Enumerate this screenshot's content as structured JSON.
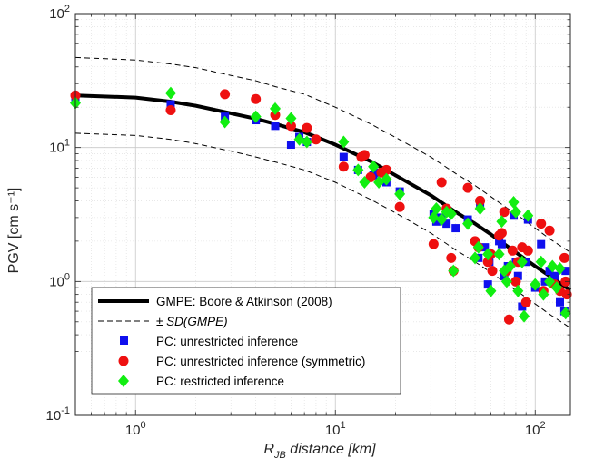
{
  "chart_data": {
    "type": "scatter",
    "xscale": "log",
    "yscale": "log",
    "xlim": [
      0.5,
      150
    ],
    "ylim": [
      0.1,
      100
    ],
    "grid": true,
    "legend_position": "bottom-left",
    "xlabel": {
      "main": "R",
      "sub": "JB",
      "rest": " distance [km]"
    },
    "ylabel": "PGV [cm s⁻¹]",
    "x_ticks": [
      {
        "value": 1,
        "base": "10",
        "exp": "0"
      },
      {
        "value": 10,
        "base": "10",
        "exp": "1"
      },
      {
        "value": 100,
        "base": "10",
        "exp": "2"
      }
    ],
    "y_ticks": [
      {
        "value": 0.1,
        "base": "10",
        "exp": "-1"
      },
      {
        "value": 1,
        "base": "10",
        "exp": "0"
      },
      {
        "value": 10,
        "base": "10",
        "exp": "1"
      },
      {
        "value": 100,
        "base": "10",
        "exp": "2"
      }
    ],
    "series": [
      {
        "name": "GMPE: Boore & Atkinson (2008)",
        "kind": "line",
        "style": "solid",
        "color": "#000000",
        "points": [
          [
            0.5,
            24.5
          ],
          [
            1,
            23.6
          ],
          [
            1.5,
            22.0
          ],
          [
            2,
            20.5
          ],
          [
            3,
            18.0
          ],
          [
            4,
            16.4
          ],
          [
            5,
            15.0
          ],
          [
            7,
            13.0
          ],
          [
            10,
            10.5
          ],
          [
            15,
            7.9
          ],
          [
            20,
            6.2
          ],
          [
            30,
            4.4
          ],
          [
            40,
            3.3
          ],
          [
            50,
            2.7
          ],
          [
            60,
            2.25
          ],
          [
            70,
            1.9
          ],
          [
            80,
            1.65
          ],
          [
            100,
            1.3
          ],
          [
            120,
            1.08
          ],
          [
            150,
            0.86
          ]
        ]
      },
      {
        "name": "± SD(GMPE)",
        "kind": "line",
        "style": "dashed",
        "color": "#000000",
        "upper": [
          [
            0.5,
            47
          ],
          [
            1,
            45
          ],
          [
            1.5,
            42
          ],
          [
            2,
            39.5
          ],
          [
            3,
            34.5
          ],
          [
            4,
            31.5
          ],
          [
            5,
            28.5
          ],
          [
            7,
            25
          ],
          [
            10,
            20
          ],
          [
            15,
            15
          ],
          [
            20,
            11.9
          ],
          [
            30,
            8.5
          ],
          [
            40,
            6.4
          ],
          [
            50,
            5.2
          ],
          [
            60,
            4.3
          ],
          [
            70,
            3.65
          ],
          [
            80,
            3.2
          ],
          [
            100,
            2.5
          ],
          [
            120,
            2.05
          ],
          [
            150,
            1.65
          ]
        ],
        "lower": [
          [
            0.5,
            12.8
          ],
          [
            1,
            12.3
          ],
          [
            1.5,
            11.5
          ],
          [
            2,
            10.7
          ],
          [
            3,
            9.4
          ],
          [
            4,
            8.5
          ],
          [
            5,
            7.8
          ],
          [
            7,
            6.8
          ],
          [
            10,
            5.5
          ],
          [
            15,
            4.1
          ],
          [
            20,
            3.25
          ],
          [
            30,
            2.3
          ],
          [
            40,
            1.72
          ],
          [
            50,
            1.4
          ],
          [
            60,
            1.17
          ],
          [
            70,
            0.99
          ],
          [
            80,
            0.86
          ],
          [
            100,
            0.68
          ],
          [
            120,
            0.56
          ],
          [
            150,
            0.45
          ]
        ]
      },
      {
        "name": "PC: unrestricted inference",
        "kind": "marker",
        "marker": "square",
        "color": "#1010ee",
        "points": [
          [
            0.5,
            22.5
          ],
          [
            1.5,
            21.0
          ],
          [
            2.8,
            17.0
          ],
          [
            4,
            16.0
          ],
          [
            5,
            14.5
          ],
          [
            6,
            10.5
          ],
          [
            6.6,
            12.0
          ],
          [
            7.2,
            11.0
          ],
          [
            11,
            8.5
          ],
          [
            13,
            6.8
          ],
          [
            15.5,
            6.2
          ],
          [
            16.5,
            6.5
          ],
          [
            18,
            5.5
          ],
          [
            21,
            4.7
          ],
          [
            31,
            3.2
          ],
          [
            32,
            2.8
          ],
          [
            34,
            3.0
          ],
          [
            36,
            2.7
          ],
          [
            40,
            2.5
          ],
          [
            46,
            2.9
          ],
          [
            52,
            1.5
          ],
          [
            53,
            3.8
          ],
          [
            56,
            1.8
          ],
          [
            58,
            0.95
          ],
          [
            59,
            1.4
          ],
          [
            66,
            2.0
          ],
          [
            68,
            1.9
          ],
          [
            70,
            1.1
          ],
          [
            73,
            1.3
          ],
          [
            78,
            3.1
          ],
          [
            80,
            1.4
          ],
          [
            82,
            1.1
          ],
          [
            86,
            0.65
          ],
          [
            90,
            1.4
          ],
          [
            92,
            2.9
          ],
          [
            100,
            0.9
          ],
          [
            107,
            1.9
          ],
          [
            112,
            1.0
          ],
          [
            118,
            1.2
          ],
          [
            125,
            1.1
          ],
          [
            133,
            0.7
          ],
          [
            140,
            0.6
          ],
          [
            142,
            1.2
          ]
        ]
      },
      {
        "name": "PC: unrestricted inference (symmetric)",
        "kind": "marker",
        "marker": "circle",
        "color": "#ee1010",
        "points": [
          [
            0.5,
            24.5
          ],
          [
            1.5,
            19.0
          ],
          [
            2.8,
            25.0
          ],
          [
            4,
            23.0
          ],
          [
            5,
            17.5
          ],
          [
            6,
            14.5
          ],
          [
            7.2,
            14.0
          ],
          [
            8,
            11.5
          ],
          [
            11,
            7.2
          ],
          [
            13.5,
            8.5
          ],
          [
            14,
            8.8
          ],
          [
            15,
            6.0
          ],
          [
            17,
            6.5
          ],
          [
            18,
            6.8
          ],
          [
            21,
            3.6
          ],
          [
            31,
            1.9
          ],
          [
            34,
            5.5
          ],
          [
            36,
            3.5
          ],
          [
            38,
            1.5
          ],
          [
            39,
            1.2
          ],
          [
            46,
            5.0
          ],
          [
            50,
            2.0
          ],
          [
            52,
            1.8
          ],
          [
            53,
            4.0
          ],
          [
            58,
            1.4
          ],
          [
            60,
            1.6
          ],
          [
            61,
            1.2
          ],
          [
            66,
            2.2
          ],
          [
            68,
            2.3
          ],
          [
            70,
            3.3
          ],
          [
            72,
            1.2
          ],
          [
            74,
            0.52
          ],
          [
            77,
            1.7
          ],
          [
            80,
            1.0
          ],
          [
            82,
            1.4
          ],
          [
            86,
            1.8
          ],
          [
            90,
            0.7
          ],
          [
            92,
            1.7
          ],
          [
            107,
            2.7
          ],
          [
            110,
            0.85
          ],
          [
            118,
            2.4
          ],
          [
            125,
            0.95
          ],
          [
            133,
            0.85
          ],
          [
            140,
            1.5
          ],
          [
            142,
            1.0
          ],
          [
            144,
            0.8
          ]
        ]
      },
      {
        "name": "PC: restricted inference",
        "kind": "marker",
        "marker": "diamond",
        "color": "#11ee11",
        "points": [
          [
            0.5,
            21.5
          ],
          [
            1.5,
            25.5
          ],
          [
            2.8,
            15.5
          ],
          [
            4,
            17.0
          ],
          [
            5,
            19.5
          ],
          [
            6,
            16.5
          ],
          [
            6.6,
            11.5
          ],
          [
            7.2,
            11.0
          ],
          [
            11,
            11.0
          ],
          [
            13,
            6.8
          ],
          [
            14,
            5.5
          ],
          [
            15.5,
            7.2
          ],
          [
            16.5,
            5.5
          ],
          [
            18,
            5.8
          ],
          [
            21,
            4.5
          ],
          [
            31,
            3.0
          ],
          [
            32,
            3.5
          ],
          [
            34,
            2.9
          ],
          [
            36,
            3.3
          ],
          [
            38,
            3.2
          ],
          [
            39,
            1.2
          ],
          [
            46,
            2.7
          ],
          [
            50,
            1.5
          ],
          [
            52,
            1.8
          ],
          [
            53,
            3.5
          ],
          [
            58,
            1.6
          ],
          [
            60,
            0.85
          ],
          [
            66,
            1.6
          ],
          [
            68,
            2.8
          ],
          [
            70,
            1.2
          ],
          [
            72,
            1.0
          ],
          [
            75,
            1.3
          ],
          [
            78,
            3.9
          ],
          [
            80,
            3.3
          ],
          [
            82,
            0.85
          ],
          [
            86,
            1.4
          ],
          [
            88,
            0.55
          ],
          [
            92,
            3.1
          ],
          [
            100,
            0.95
          ],
          [
            107,
            1.4
          ],
          [
            110,
            0.8
          ],
          [
            118,
            1.0
          ],
          [
            122,
            1.3
          ],
          [
            128,
            0.9
          ],
          [
            133,
            1.25
          ],
          [
            142,
            0.58
          ]
        ]
      }
    ]
  }
}
